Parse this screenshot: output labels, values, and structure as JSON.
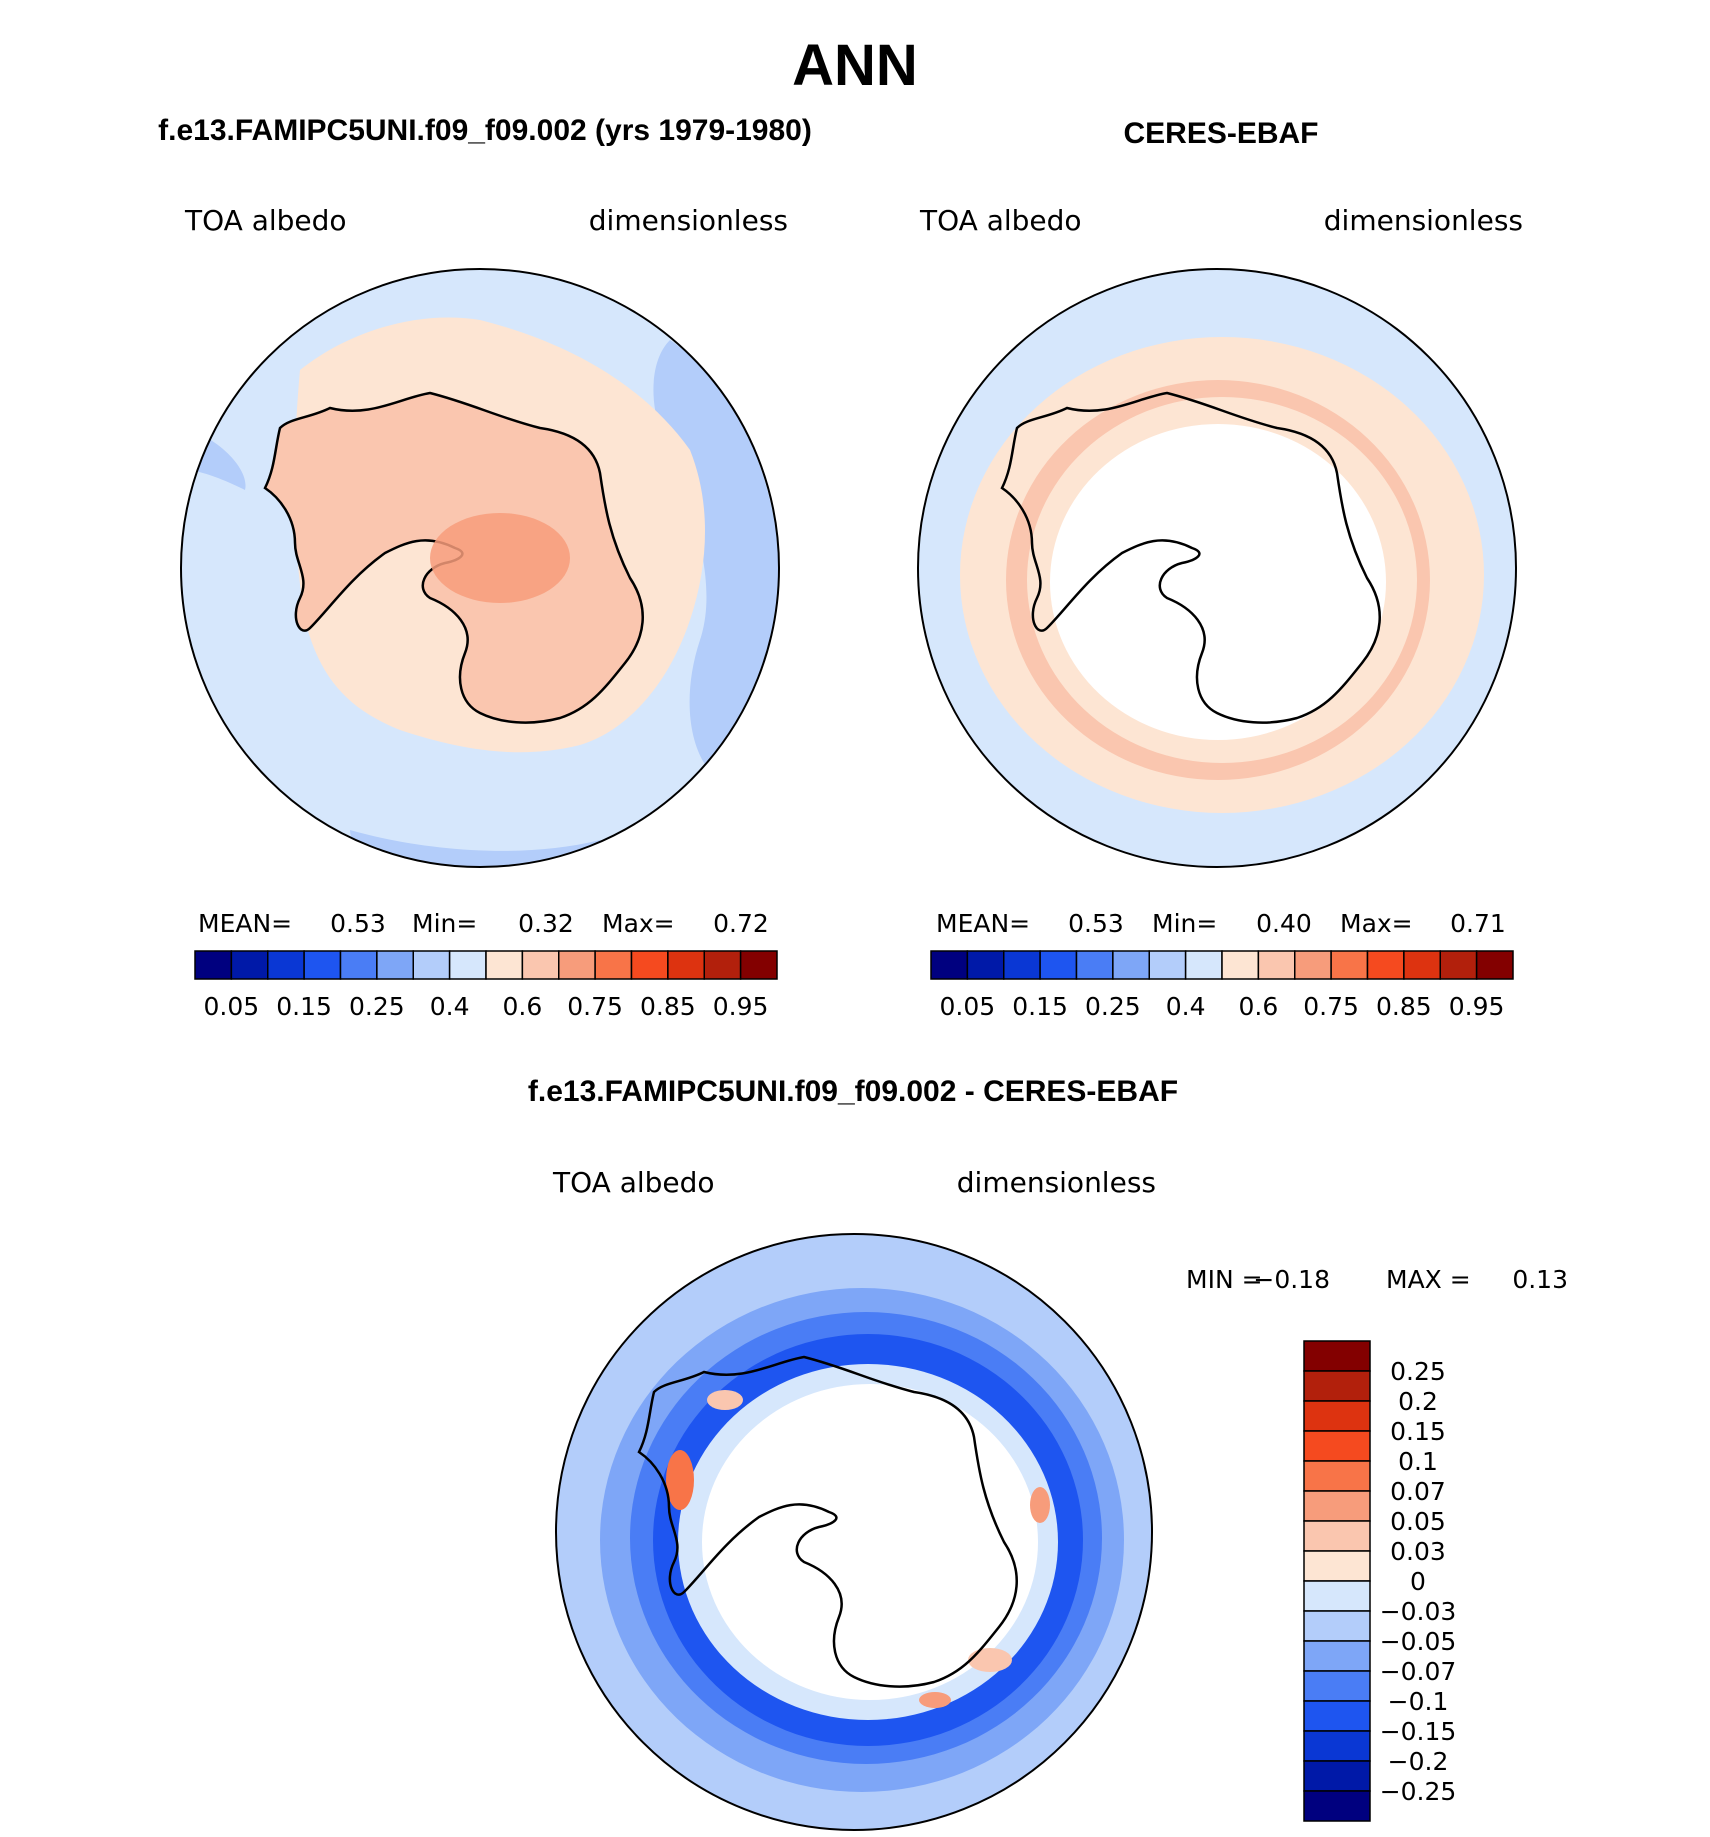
{
  "title": "ANN",
  "panels": {
    "model": {
      "header": "f.e13.FAMIPC5UNI.f09_f09.002 (yrs 1979-1980)",
      "variable": "TOA albedo",
      "units": "dimensionless",
      "stats": {
        "mean_label": "MEAN=",
        "mean": "0.53",
        "min_label": "Min=",
        "min": "0.32",
        "max_label": "Max=",
        "max": "0.72"
      }
    },
    "obs": {
      "header": "CERES-EBAF",
      "variable": "TOA albedo",
      "units": "dimensionless",
      "stats": {
        "mean_label": "MEAN=",
        "mean": "0.53",
        "min_label": "Min=",
        "min": "0.40",
        "max_label": "Max=",
        "max": "0.71"
      }
    },
    "diff": {
      "header": "f.e13.FAMIPC5UNI.f09_f09.002 - CERES-EBAF",
      "variable": "TOA albedo",
      "units": "dimensionless",
      "min_label": "MIN =",
      "min": "−0.18",
      "max_label": "MAX =",
      "max": "0.13"
    }
  },
  "chart_data": [
    {
      "type": "heatmap",
      "projection": "south polar stereographic",
      "title": "f.e13.FAMIPC5UNI.f09_f09.002 (yrs 1979-1980)",
      "variable": "TOA albedo",
      "units": "dimensionless",
      "mean": 0.53,
      "min": 0.32,
      "max": 0.72,
      "colorbar_tick_labels": [
        "0.05",
        "0.15",
        "0.25",
        "0.4",
        "0.6",
        "0.75",
        "0.85",
        "0.95"
      ],
      "colorbar_colors": [
        "#00007f",
        "#0019a8",
        "#0a37d4",
        "#1e55f0",
        "#4a7df5",
        "#7ea6f7",
        "#b3cdfa",
        "#d6e7fc",
        "#fde5d3",
        "#fac6af",
        "#f79c7b",
        "#f87448",
        "#f54a1f",
        "#dd3310",
        "#b2200c",
        "#830000"
      ]
    },
    {
      "type": "heatmap",
      "projection": "south polar stereographic",
      "title": "CERES-EBAF",
      "variable": "TOA albedo",
      "units": "dimensionless",
      "mean": 0.53,
      "min": 0.4,
      "max": 0.71,
      "colorbar_tick_labels": [
        "0.05",
        "0.15",
        "0.25",
        "0.4",
        "0.6",
        "0.75",
        "0.85",
        "0.95"
      ],
      "colorbar_colors": [
        "#00007f",
        "#0019a8",
        "#0a37d4",
        "#1e55f0",
        "#4a7df5",
        "#7ea6f7",
        "#b3cdfa",
        "#d6e7fc",
        "#fde5d3",
        "#fac6af",
        "#f79c7b",
        "#f87448",
        "#f54a1f",
        "#dd3310",
        "#b2200c",
        "#830000"
      ]
    },
    {
      "type": "heatmap",
      "projection": "south polar stereographic",
      "title": "f.e13.FAMIPC5UNI.f09_f09.002 - CERES-EBAF",
      "variable": "TOA albedo",
      "units": "dimensionless",
      "min": -0.18,
      "max": 0.13,
      "colorbar_tick_labels": [
        "0.25",
        "0.2",
        "0.15",
        "0.1",
        "0.07",
        "0.05",
        "0.03",
        "0",
        "−0.03",
        "−0.05",
        "−0.07",
        "−0.1",
        "−0.15",
        "−0.2",
        "−0.25"
      ],
      "colorbar_colors": [
        "#830000",
        "#b2200c",
        "#dd3310",
        "#f54a1f",
        "#f87448",
        "#f79c7b",
        "#fac6af",
        "#fde5d3",
        "#d6e7fc",
        "#b3cdfa",
        "#7ea6f7",
        "#4a7df5",
        "#1e55f0",
        "#0a37d4",
        "#0019a8",
        "#00007f"
      ]
    }
  ]
}
